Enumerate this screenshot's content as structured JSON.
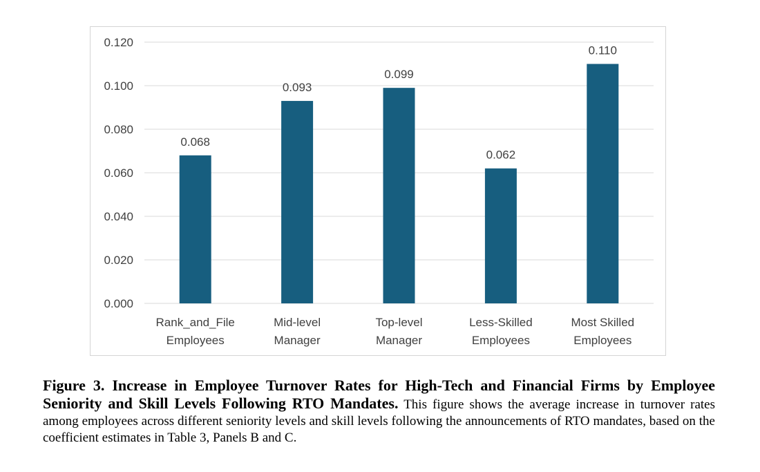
{
  "chart_data": {
    "type": "bar",
    "title": "",
    "xlabel": "",
    "ylabel": "",
    "categories": [
      [
        "Rank_and_File",
        "Employees"
      ],
      [
        "Mid-level",
        "Manager"
      ],
      [
        "Top-level",
        "Manager"
      ],
      [
        "Less-Skilled",
        "Employees"
      ],
      [
        "Most Skilled",
        "Employees"
      ]
    ],
    "values": [
      0.068,
      0.093,
      0.099,
      0.062,
      0.11
    ],
    "value_labels": [
      "0.068",
      "0.093",
      "0.099",
      "0.062",
      "0.110"
    ],
    "ylim": [
      0,
      0.12
    ],
    "yticks": [
      0,
      0.02,
      0.04,
      0.06,
      0.08,
      0.1,
      0.12
    ],
    "ytick_labels": [
      "0.000",
      "0.020",
      "0.040",
      "0.060",
      "0.080",
      "0.100",
      "0.120"
    ],
    "grid": true,
    "bar_color": "#175E7F",
    "grid_color": "#d9d9d9"
  },
  "caption": {
    "heading": "Figure 3. Increase in Employee Turnover Rates for High-Tech and Financial Firms by Employee Seniority and Skill Levels Following RTO Mandates.",
    "body": " This figure shows the average increase in turnover rates among employees across different seniority levels and skill levels following the announcements of RTO mandates, based on the coefficient estimates in Table 3, Panels B and C."
  }
}
